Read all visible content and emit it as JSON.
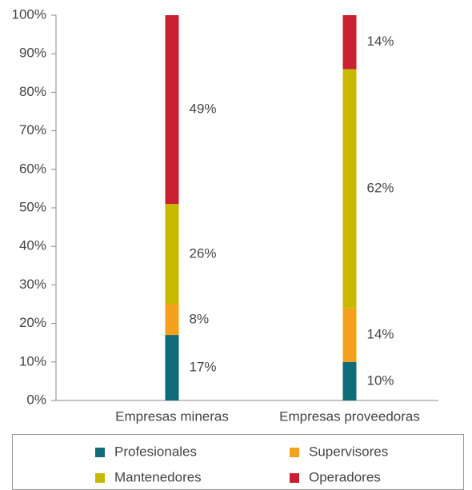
{
  "chart_data": {
    "type": "stacked_bar",
    "categories": [
      "Empresas mineras",
      "Empresas proveedoras"
    ],
    "series": [
      {
        "name": "Profesionales",
        "color": "#0f6b78",
        "values": [
          17,
          10
        ],
        "value_labels": [
          "17%",
          "10%"
        ]
      },
      {
        "name": "Supervisores",
        "color": "#f5a01a",
        "values": [
          8,
          14
        ],
        "value_labels": [
          "8%",
          "14%"
        ]
      },
      {
        "name": "Mantenedores",
        "color": "#c8b900",
        "values": [
          26,
          62
        ],
        "value_labels": [
          "26%",
          "62%"
        ]
      },
      {
        "name": "Operadores",
        "color": "#c8202f",
        "values": [
          49,
          14
        ],
        "value_labels": [
          "49%",
          "14%"
        ]
      }
    ],
    "ylim": [
      0,
      100
    ],
    "yticks": [
      {
        "value": 0,
        "label": "0%"
      },
      {
        "value": 10,
        "label": "10%"
      },
      {
        "value": 20,
        "label": "20%"
      },
      {
        "value": 30,
        "label": "30%"
      },
      {
        "value": 40,
        "label": "40%"
      },
      {
        "value": 50,
        "label": "50%"
      },
      {
        "value": 60,
        "label": "60%"
      },
      {
        "value": 70,
        "label": "70%"
      },
      {
        "value": 80,
        "label": "80%"
      },
      {
        "value": 90,
        "label": "90%"
      },
      {
        "value": 100,
        "label": "100%"
      }
    ],
    "legend": "bottom"
  }
}
